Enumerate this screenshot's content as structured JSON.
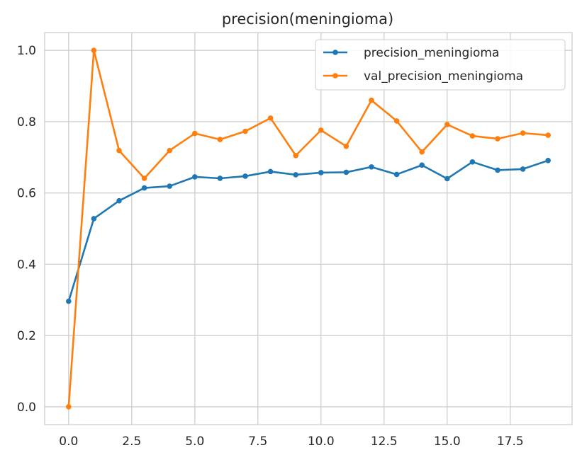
{
  "chart_data": {
    "type": "line",
    "title": "precision(meningioma)",
    "xlabel": "",
    "ylabel": "",
    "xlim": [
      -0.95,
      19.95
    ],
    "ylim": [
      -0.05,
      1.05
    ],
    "xticks": [
      0.0,
      2.5,
      5.0,
      7.5,
      10.0,
      12.5,
      15.0,
      17.5
    ],
    "xtick_labels": [
      "0.0",
      "2.5",
      "5.0",
      "7.5",
      "10.0",
      "12.5",
      "15.0",
      "17.5"
    ],
    "yticks": [
      0.0,
      0.2,
      0.4,
      0.6,
      0.8,
      1.0
    ],
    "ytick_labels": [
      "0.0",
      "0.2",
      "0.4",
      "0.6",
      "0.8",
      "1.0"
    ],
    "grid": true,
    "legend_position": "top-right",
    "x": [
      0,
      1,
      2,
      3,
      4,
      5,
      6,
      7,
      8,
      9,
      10,
      11,
      12,
      13,
      14,
      15,
      16,
      17,
      18,
      19
    ],
    "series": [
      {
        "name": "precision_meningioma",
        "color": "#1f77b4",
        "values": [
          0.296,
          0.528,
          0.578,
          0.614,
          0.619,
          0.645,
          0.641,
          0.647,
          0.66,
          0.651,
          0.657,
          0.658,
          0.673,
          0.652,
          0.678,
          0.64,
          0.687,
          0.664,
          0.667,
          0.691
        ]
      },
      {
        "name": "val_precision_meningioma",
        "color": "#ff7f0e",
        "values": [
          0.0,
          1.0,
          0.719,
          0.641,
          0.719,
          0.767,
          0.75,
          0.773,
          0.81,
          0.705,
          0.776,
          0.731,
          0.86,
          0.802,
          0.715,
          0.792,
          0.76,
          0.752,
          0.768,
          0.762
        ]
      }
    ]
  }
}
